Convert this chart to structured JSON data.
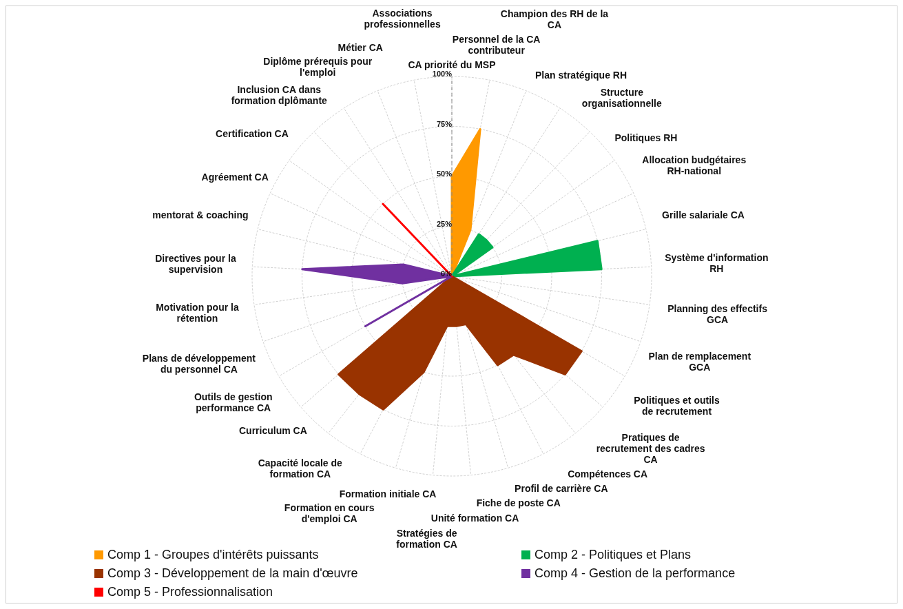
{
  "chart_data": {
    "type": "radar",
    "categories": [
      "CA priorité du MSP",
      "Personnel de la CA contributeur",
      "Champion des RH de la CA",
      "Plan stratégique RH",
      "Structure organisationnelle",
      "Politiques RH",
      "Allocation budgétaires RH-national",
      "Grille salariale CA",
      "Système d'information RH",
      "Planning des effectifs GCA",
      "Plan de remplacement GCA",
      "Politiques et outils de recrutement",
      "Pratiques de recrutement des cadres CA",
      "Compétences CA",
      "Profil de carrière CA",
      "Fiche de poste CA",
      "Unité formation CA",
      "Stratégies de formation CA",
      "Formation initiale CA",
      "Formation en cours d'emploi CA",
      "Capacité locale de formation CA",
      "Curriculum CA",
      "Outils de gestion performance CA",
      "Plans de développement du personnel CA",
      "Motivation pour la rétention",
      "Directives pour la supervision",
      "mentorat & coaching",
      "Agréement CA",
      "Certification CA",
      "Inclusion CA dans formation dplômante",
      "Diplôme prérequis pour l'emploi",
      "Métier CA",
      "Associations professionnelles"
    ],
    "series": [
      {
        "name": "Comp 1 - Groupes d'intérêts puissants",
        "color": "#ff9900",
        "values": [
          50,
          75,
          25,
          0,
          0,
          0,
          0,
          0,
          0,
          0,
          0,
          0,
          0,
          0,
          0,
          0,
          0,
          0,
          0,
          0,
          0,
          0,
          0,
          0,
          0,
          0,
          0,
          0,
          0,
          0,
          0,
          0,
          0
        ]
      },
      {
        "name": "Comp 2 - Politiques et Plans",
        "color": "#00b050",
        "values": [
          0,
          0,
          0,
          25,
          25,
          25,
          0,
          75,
          75,
          0,
          0,
          0,
          0,
          0,
          0,
          0,
          0,
          0,
          0,
          0,
          0,
          0,
          0,
          0,
          0,
          0,
          0,
          0,
          0,
          0,
          0,
          0,
          0
        ]
      },
      {
        "name": "Comp 3 - Développement de la main d'œuvre",
        "color": "#993300",
        "values": [
          0,
          0,
          0,
          0,
          0,
          0,
          0,
          0,
          0,
          0,
          0,
          75,
          75,
          50,
          50,
          25,
          25,
          25,
          50,
          75,
          75,
          75,
          0,
          0,
          0,
          0,
          0,
          0,
          0,
          0,
          0,
          0,
          0
        ]
      },
      {
        "name": "Comp 4 - Gestion de la performance",
        "color": "#7030a0",
        "values": [
          0,
          0,
          0,
          0,
          0,
          0,
          0,
          0,
          0,
          0,
          0,
          0,
          0,
          0,
          0,
          0,
          0,
          0,
          0,
          0,
          0,
          0,
          50,
          0,
          25,
          75,
          25,
          0,
          0,
          0,
          0,
          0,
          0
        ]
      },
      {
        "name": "Comp 5 - Professionnalisation",
        "color": "#ff0000",
        "values": [
          0,
          0,
          0,
          0,
          0,
          0,
          0,
          0,
          0,
          0,
          0,
          0,
          0,
          0,
          0,
          0,
          0,
          0,
          0,
          0,
          0,
          0,
          0,
          0,
          0,
          0,
          0,
          0,
          0,
          50,
          0,
          0,
          0
        ]
      }
    ],
    "ylim": [
      0,
      100
    ],
    "yticks": [
      {
        "value": 0,
        "label": "0%"
      },
      {
        "value": 25,
        "label": "25%"
      },
      {
        "value": 50,
        "label": "50%"
      },
      {
        "value": 75,
        "label": "75%"
      },
      {
        "value": 100,
        "label": "100%"
      }
    ],
    "grid": true,
    "legend": "bottom"
  }
}
